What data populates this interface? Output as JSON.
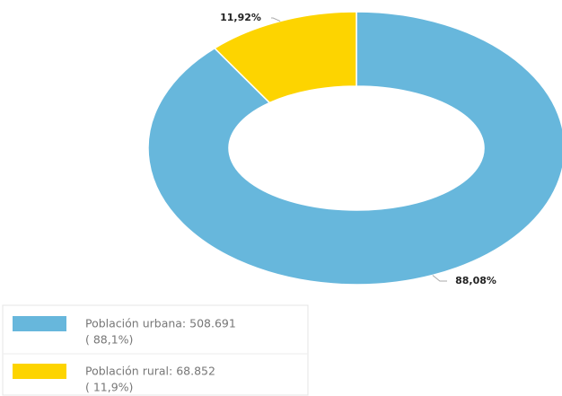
{
  "chart_data": {
    "type": "donut",
    "values": [
      88.08,
      11.92
    ],
    "value_labels": [
      "88,08%",
      "11,92%"
    ],
    "colors": [
      "#67b7dc",
      "#fdd400"
    ],
    "legend_labels": [
      "Población urbana: 508.691",
      "Población rural: 68.852"
    ],
    "legend_sublabels": [
      "( 88,1%)",
      "( 11,9%)"
    ]
  }
}
